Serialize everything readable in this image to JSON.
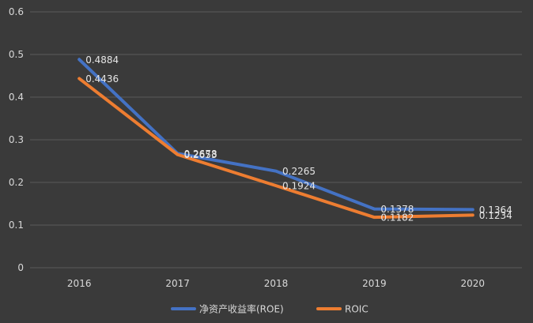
{
  "chart_data": {
    "type": "line",
    "title": "",
    "xlabel": "",
    "ylabel": "",
    "categories": [
      "2016",
      "2017",
      "2018",
      "2019",
      "2020"
    ],
    "ylim": [
      0,
      0.6
    ],
    "yticks": [
      "0",
      "0.1",
      "0.2",
      "0.3",
      "0.4",
      "0.5",
      "0.6"
    ],
    "grid": true,
    "legend": "bottom",
    "series": [
      {
        "name": "净资产收益率(ROE)",
        "color": "#4472c4",
        "values": [
          0.4884,
          0.2678,
          0.2265,
          0.1378,
          0.1364
        ],
        "labels": [
          "0.4884",
          "0.2678",
          "0.2265",
          "0.1378",
          "0.1364"
        ]
      },
      {
        "name": "ROIC",
        "color": "#ed7d31",
        "values": [
          0.4436,
          0.2653,
          0.1924,
          0.1182,
          0.1234
        ],
        "labels": [
          "0.4436",
          "0.2653",
          "0.1924",
          "0.1182",
          "0.1234"
        ]
      }
    ],
    "gridline_color": "#595959",
    "background_color": "#3a3a3a"
  }
}
